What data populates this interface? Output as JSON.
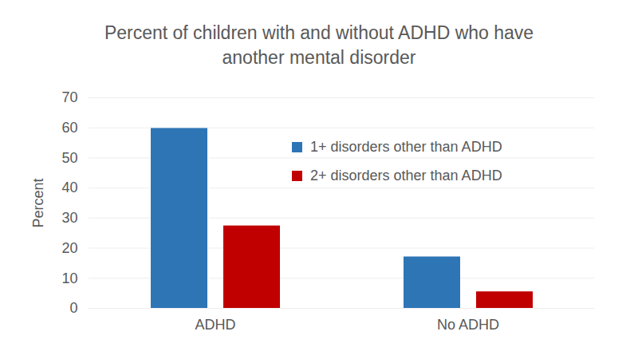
{
  "chart_data": {
    "type": "bar",
    "title": "Percent of children with and without ADHD who have another mental disorder",
    "categories": [
      "ADHD",
      "No ADHD"
    ],
    "series": [
      {
        "name": "1+ disorders other than ADHD",
        "color": "#2e75b6",
        "values": [
          59.8,
          17.1
        ]
      },
      {
        "name": "2+ disorders other than ADHD",
        "color": "#c00000",
        "values": [
          27.4,
          5.5
        ]
      }
    ],
    "ylabel": "Percent",
    "ylim": [
      0,
      70
    ],
    "yticks": [
      0,
      10,
      20,
      30,
      40,
      50,
      60,
      70
    ],
    "grid": true,
    "legend": "top-right"
  }
}
